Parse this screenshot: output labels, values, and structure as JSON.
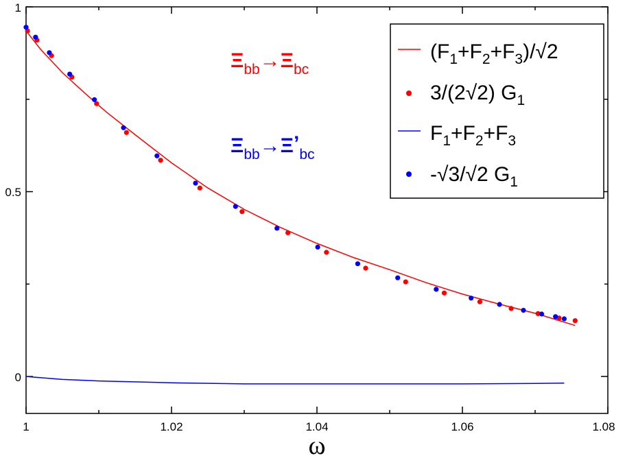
{
  "chart_data": {
    "type": "line",
    "title": "",
    "xlabel": "ω",
    "ylabel": "",
    "xlim": [
      1.0,
      1.08
    ],
    "ylim": [
      -0.1,
      1.0
    ],
    "x_ticks": [
      "1",
      "1.02",
      "1.04",
      "1.06",
      "1.08"
    ],
    "y_ticks": [
      "0",
      "0.5",
      "1"
    ],
    "legend": {
      "placement": "top-right",
      "entries": [
        {
          "label": "(F1+F2+F3)/√2",
          "marker": "line",
          "color": "#ff0000"
        },
        {
          "label": "3/(2√2) G1",
          "marker": "dot",
          "color": "#ff0000"
        },
        {
          "label": "F1+F2+F3",
          "marker": "line",
          "color": "#0000ff"
        },
        {
          "label": "-√3/√2 G1",
          "marker": "dot",
          "color": "#0000ff"
        }
      ]
    },
    "annotations": [
      {
        "text": "Ξbb → Ξbc",
        "color": "#ff0000"
      },
      {
        "text": "Ξbb → Ξ'bc",
        "color": "#0000ff"
      }
    ],
    "series": [
      {
        "name": "(F1+F2+F3)/√2",
        "style": "line",
        "color": "#ff0000",
        "x": [
          1.0,
          1.002,
          1.005,
          1.008,
          1.011,
          1.015,
          1.02,
          1.025,
          1.03,
          1.035,
          1.04,
          1.045,
          1.05,
          1.055,
          1.06,
          1.065,
          1.07,
          1.0755
        ],
        "y": [
          0.935,
          0.885,
          0.822,
          0.768,
          0.716,
          0.654,
          0.578,
          0.51,
          0.452,
          0.403,
          0.36,
          0.322,
          0.289,
          0.254,
          0.223,
          0.196,
          0.171,
          0.138
        ]
      },
      {
        "name": "3/(2√2) G1",
        "style": "dot",
        "color": "#ff0000",
        "x": [
          1.0002,
          1.0015,
          1.0035,
          1.0063,
          1.0097,
          1.0138,
          1.0185,
          1.0239,
          1.0297,
          1.036,
          1.0413,
          1.0467,
          1.0522,
          1.0575,
          1.0624,
          1.0667,
          1.0704,
          1.0733,
          1.0755
        ],
        "y": [
          0.935,
          0.91,
          0.868,
          0.81,
          0.738,
          0.66,
          0.585,
          0.51,
          0.446,
          0.389,
          0.336,
          0.293,
          0.256,
          0.226,
          0.202,
          0.184,
          0.17,
          0.158,
          0.151
        ]
      },
      {
        "name": "F1+F2+F3",
        "style": "line",
        "color": "#0000ff",
        "x": [
          1.0,
          1.005,
          1.01,
          1.02,
          1.03,
          1.04,
          1.05,
          1.06,
          1.07,
          1.074
        ],
        "y": [
          0.0,
          -0.008,
          -0.012,
          -0.017,
          -0.02,
          -0.02,
          -0.02,
          -0.02,
          -0.019,
          -0.018
        ]
      },
      {
        "name": "-√3/√2 G1",
        "style": "dot",
        "color": "#0000ff",
        "x": [
          1.0,
          1.0013,
          1.0032,
          1.006,
          1.0094,
          1.0134,
          1.018,
          1.0233,
          1.0288,
          1.0345,
          1.0401,
          1.0456,
          1.0511,
          1.0564,
          1.0612,
          1.0651,
          1.0684,
          1.0709,
          1.0728,
          1.074
        ],
        "y": [
          0.945,
          0.918,
          0.876,
          0.818,
          0.749,
          0.673,
          0.597,
          0.523,
          0.46,
          0.401,
          0.35,
          0.305,
          0.267,
          0.236,
          0.212,
          0.195,
          0.179,
          0.169,
          0.162,
          0.156
        ]
      }
    ]
  }
}
